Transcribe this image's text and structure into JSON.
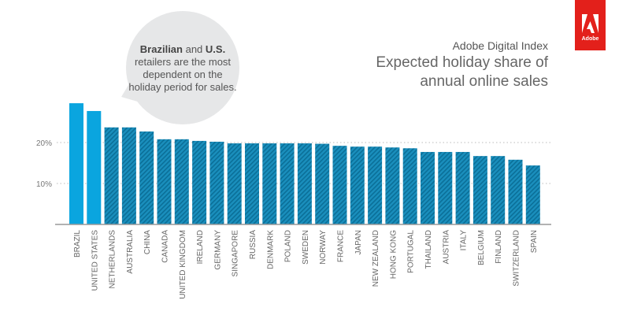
{
  "header": {
    "subtitle": "Adobe Digital Index",
    "title_line1": "Expected holiday share of",
    "title_line2": "annual online sales",
    "logo_text": "Adobe"
  },
  "callout": {
    "bold1": "Brazilian",
    "text1": " and ",
    "bold2": "U.S.",
    "text2": "retailers are the most dependent on the holiday period for sales."
  },
  "colors": {
    "highlight": "#0aa5df",
    "bar": "#1a8fbd",
    "stripe": "#0b6f98",
    "logo": "#e3201b",
    "bubble": "#e6e7e8"
  },
  "chart_data": {
    "type": "bar",
    "title": "Expected holiday share of annual online sales",
    "ylim": [
      0,
      30
    ],
    "yticks": [
      10,
      20
    ],
    "ytick_labels": [
      "10%",
      "20%"
    ],
    "grid": "dotted horizontal at ticks",
    "highlighted": [
      "BRAZIL",
      "UNITED STATES"
    ],
    "categories": [
      "BRAZIL",
      "UNITED STATES",
      "NETHERLANDS",
      "AUSTRALIA",
      "CHINA",
      "CANADA",
      "UNITED KINGDOM",
      "IRELAND",
      "GERMANY",
      "SINGAPORE",
      "RUSSIA",
      "DENMARK",
      "POLAND",
      "SWEDEN",
      "NORWAY",
      "FRANCE",
      "JAPAN",
      "NEW ZEALAND",
      "HONG KONG",
      "PORTUGAL",
      "THAILAND",
      "AUSTRIA",
      "ITALY",
      "BELGIUM",
      "FINLAND",
      "SWITZERLAND",
      "SPAIN"
    ],
    "values": [
      29.6,
      27.7,
      23.7,
      23.7,
      22.7,
      20.8,
      20.8,
      20.4,
      20.2,
      19.8,
      19.8,
      19.8,
      19.8,
      19.8,
      19.7,
      19.2,
      19.0,
      19.0,
      18.8,
      18.6,
      17.7,
      17.7,
      17.7,
      16.7,
      16.7,
      15.8,
      14.4
    ]
  }
}
